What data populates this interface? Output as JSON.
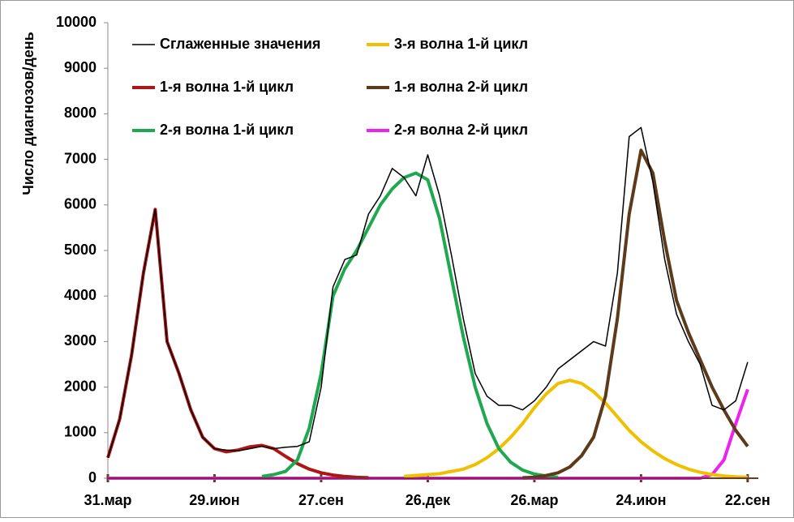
{
  "chart_data": {
    "type": "line",
    "y_label": "Число диагнозов/день",
    "x": [
      0,
      10,
      20,
      30,
      40,
      50,
      60,
      70,
      80,
      90,
      100,
      110,
      120,
      130,
      140,
      150,
      160,
      170,
      180,
      190,
      200,
      210,
      220,
      230,
      240,
      250,
      260,
      270,
      280,
      290,
      300,
      310,
      320,
      330,
      340,
      350,
      360,
      370,
      380,
      390,
      400,
      410,
      420,
      430,
      440,
      450,
      460,
      470,
      480,
      490,
      500,
      510,
      520,
      530,
      540
    ],
    "xlim": [
      0,
      549
    ],
    "xticks": [
      {
        "value": 0,
        "label": "31.мар"
      },
      {
        "value": 90,
        "label": "29.июн"
      },
      {
        "value": 180,
        "label": "27.сен"
      },
      {
        "value": 270,
        "label": "26.дек"
      },
      {
        "value": 360,
        "label": "26.мар"
      },
      {
        "value": 450,
        "label": "24.июн"
      },
      {
        "value": 540,
        "label": "22.сен"
      }
    ],
    "ylim": [
      0,
      10000
    ],
    "yticks": [
      0,
      1000,
      2000,
      3000,
      4000,
      5000,
      6000,
      7000,
      8000,
      9000,
      10000
    ],
    "series": [
      {
        "name": "Сглаженные значения",
        "color": "#000000",
        "values": [
          450,
          1300,
          2700,
          4500,
          5900,
          3000,
          2300,
          1500,
          900,
          650,
          620,
          600,
          650,
          700,
          650,
          680,
          700,
          800,
          2000,
          4200,
          4800,
          4900,
          5800,
          6200,
          6800,
          6600,
          6200,
          7100,
          6200,
          4900,
          3500,
          2300,
          1800,
          1600,
          1600,
          1500,
          1700,
          2000,
          2400,
          2600,
          2800,
          3000,
          2900,
          4500,
          7500,
          7700,
          6500,
          4800,
          3600,
          3000,
          2500,
          1600,
          1500,
          1700,
          2550
        ]
      },
      {
        "name": "1-я волна 1-й цикл",
        "color": "#b01515",
        "values": [
          450,
          1300,
          2700,
          4500,
          5900,
          3000,
          2300,
          1500,
          900,
          650,
          580,
          620,
          690,
          720,
          650,
          480,
          320,
          200,
          120,
          70,
          40,
          20,
          10,
          null,
          null,
          null,
          null,
          null,
          null,
          null,
          null,
          null,
          null,
          null,
          null,
          null,
          null,
          null,
          null,
          null,
          null,
          null,
          null,
          null,
          null,
          null,
          null,
          null,
          null,
          null,
          null,
          null,
          null,
          null,
          null
        ]
      },
      {
        "name": "2-я волна 1-й цикл",
        "color": "#1fa84f",
        "values": [
          null,
          null,
          null,
          null,
          null,
          null,
          null,
          null,
          null,
          null,
          null,
          null,
          null,
          40,
          80,
          150,
          400,
          1100,
          2300,
          4000,
          4600,
          5000,
          5500,
          6000,
          6350,
          6600,
          6700,
          6550,
          5700,
          4400,
          3100,
          2000,
          1200,
          650,
          350,
          180,
          90,
          50,
          20,
          null,
          null,
          null,
          null,
          null,
          null,
          null,
          null,
          null,
          null,
          null,
          null,
          null,
          null,
          null,
          null
        ]
      },
      {
        "name": "3-я волна 1-й цикл",
        "color": "#f0c000",
        "values": [
          null,
          null,
          null,
          null,
          null,
          null,
          null,
          null,
          null,
          null,
          null,
          null,
          null,
          null,
          null,
          null,
          null,
          null,
          null,
          null,
          null,
          null,
          null,
          null,
          null,
          40,
          60,
          80,
          100,
          150,
          200,
          300,
          450,
          650,
          900,
          1200,
          1550,
          1850,
          2080,
          2150,
          2080,
          1900,
          1650,
          1350,
          1050,
          800,
          600,
          430,
          300,
          200,
          130,
          80,
          50,
          30,
          20
        ]
      },
      {
        "name": "1-я волна 2-й цикл",
        "color": "#5c3a1a",
        "values": [
          null,
          null,
          null,
          null,
          null,
          null,
          null,
          null,
          null,
          null,
          null,
          null,
          null,
          null,
          null,
          null,
          null,
          null,
          null,
          null,
          null,
          null,
          null,
          null,
          null,
          null,
          null,
          null,
          null,
          null,
          null,
          null,
          null,
          null,
          null,
          10,
          20,
          60,
          120,
          250,
          500,
          900,
          1800,
          3500,
          5800,
          7200,
          6700,
          5200,
          3900,
          3200,
          2600,
          2000,
          1500,
          1050,
          700
        ]
      },
      {
        "name": "2-я волна 2-й цикл",
        "color": "#ee22ee",
        "values": [
          0,
          0,
          0,
          0,
          0,
          0,
          0,
          0,
          0,
          0,
          0,
          0,
          0,
          0,
          0,
          0,
          0,
          0,
          0,
          0,
          0,
          0,
          0,
          0,
          0,
          0,
          0,
          0,
          0,
          0,
          0,
          0,
          0,
          0,
          0,
          0,
          0,
          0,
          0,
          0,
          0,
          0,
          0,
          0,
          0,
          0,
          0,
          0,
          0,
          0,
          0,
          80,
          400,
          1200,
          1950
        ]
      }
    ]
  }
}
